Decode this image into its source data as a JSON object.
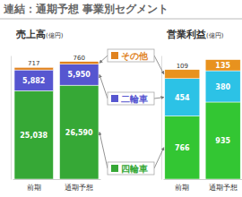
{
  "title": "連結：通期予想 事業別セグメント",
  "chart_data": [
    {
      "type": "bar",
      "stacked": true,
      "data_labels": true,
      "tick_labels": "x",
      "title": "売上高",
      "subtitle": "(億円)",
      "categories": [
        "前期",
        "通期予想"
      ],
      "ylim": [
        0,
        35000
      ],
      "series": [
        {
          "name": "四輪車",
          "color": "#36a836",
          "values": [
            25038,
            26590
          ],
          "value_labels": [
            "25,038",
            "26,590"
          ]
        },
        {
          "name": "二輪車",
          "color": "#5656d0",
          "values": [
            5882,
            5950
          ],
          "value_labels": [
            "5,882",
            "5,950"
          ]
        },
        {
          "name": "その他",
          "color": "#e0821e",
          "values": [
            717,
            760
          ]
        }
      ]
    },
    {
      "type": "bar",
      "stacked": true,
      "data_labels": true,
      "tick_labels": "x",
      "title": "営業利益",
      "subtitle": "(億円)",
      "categories": [
        "前期",
        "通期予想"
      ],
      "ylim": [
        0,
        1500
      ],
      "series": [
        {
          "name": "四輪車",
          "color": "#33c633",
          "values": [
            766,
            935
          ]
        },
        {
          "name": "二輪車",
          "color": "#2cc2e6",
          "values": [
            454,
            380
          ]
        },
        {
          "name": "その他",
          "color": "#e8921e",
          "values": [
            109,
            135
          ]
        }
      ]
    }
  ]
}
